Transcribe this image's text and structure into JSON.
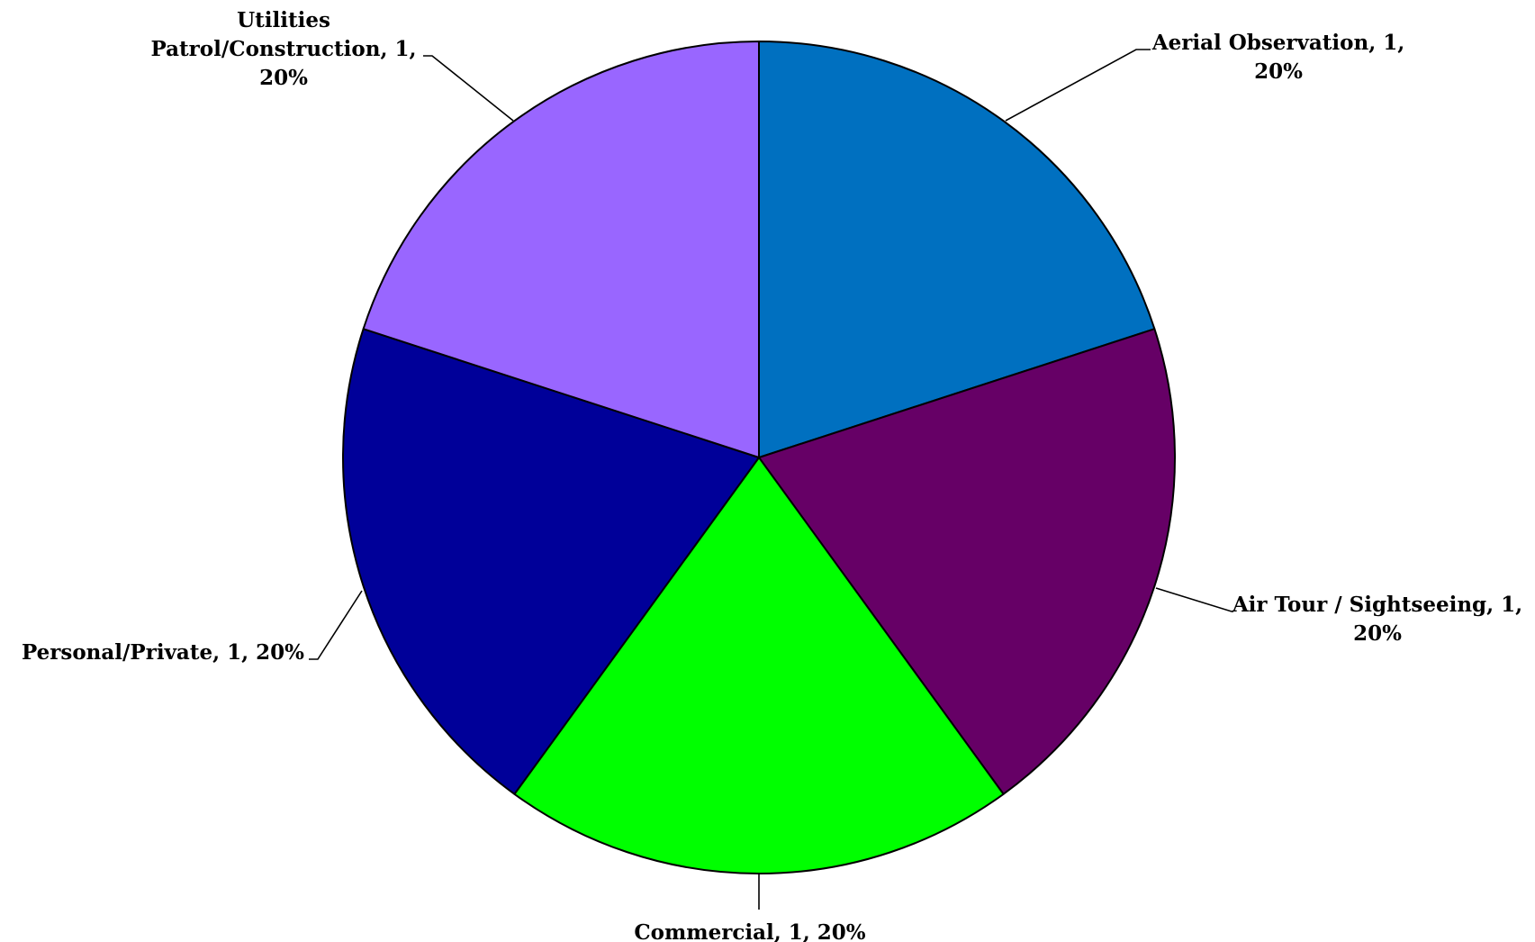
{
  "chart_data": {
    "type": "pie",
    "title": "",
    "start_angle_deg": 0,
    "direction": "clockwise",
    "slices": [
      {
        "label": "Aerial Observation",
        "value": 1,
        "percent": "20%",
        "label_lines": [
          "Aerial Observation, 1,",
          "20%"
        ],
        "color": "#0070C0"
      },
      {
        "label": "Air Tour / Sightseeing",
        "value": 1,
        "percent": "20%",
        "label_lines": [
          "Air Tour / Sightseeing, 1,",
          "20%"
        ],
        "color": "#660066"
      },
      {
        "label": "Commercial",
        "value": 1,
        "percent": "20%",
        "label_lines": [
          "Commercial, 1, 20%"
        ],
        "color": "#00FF00"
      },
      {
        "label": "Personal/Private",
        "value": 1,
        "percent": "20%",
        "label_lines": [
          "Personal/Private, 1, 20%"
        ],
        "color": "#000099"
      },
      {
        "label": "Utilities Patrol/Construction",
        "value": 1,
        "percent": "20%",
        "label_lines": [
          "Utilities",
          "Patrol/Construction, 1,",
          "20%"
        ],
        "color": "#9966FF"
      }
    ]
  }
}
